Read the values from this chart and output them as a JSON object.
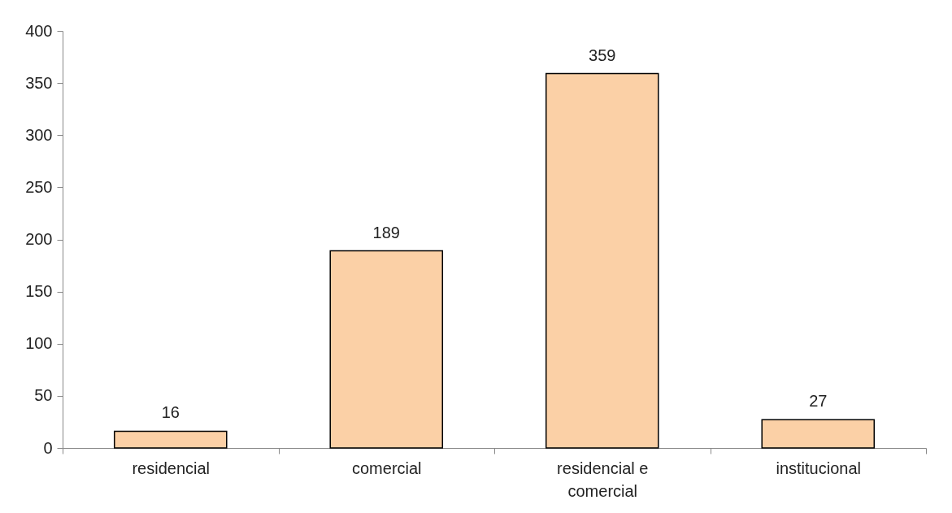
{
  "chart_data": {
    "type": "bar",
    "categories": [
      "residencial",
      "comercial",
      "residencial e comercial",
      "institucional"
    ],
    "values": [
      16,
      189,
      359,
      27
    ],
    "color": "#fbd0a6",
    "ylim": [
      0,
      400
    ],
    "yticks": [
      0,
      50,
      100,
      150,
      200,
      250,
      300,
      350,
      400
    ],
    "data_labels": true
  }
}
